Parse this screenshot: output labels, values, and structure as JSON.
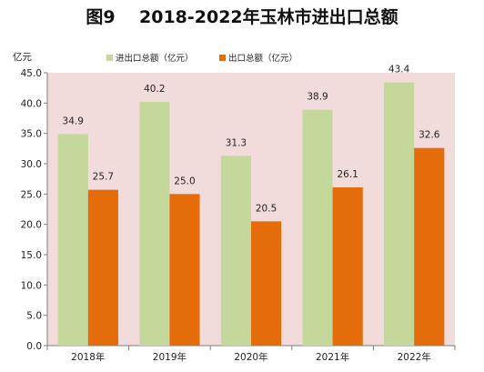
{
  "chart_data": {
    "type": "bar",
    "title": "图9    2018-2022年玉林市进出口总额",
    "ylabel": "亿元",
    "categories": [
      "2018年",
      "2019年",
      "2020年",
      "2021年",
      "2022年"
    ],
    "series": [
      {
        "name": "进出口总额（亿元）",
        "color": "#c4d89b",
        "values": [
          34.9,
          40.2,
          31.3,
          38.9,
          43.4
        ]
      },
      {
        "name": "出口总额（亿元）",
        "color": "#e46c0a",
        "values": [
          25.7,
          25.0,
          20.5,
          26.1,
          32.6
        ]
      }
    ],
    "value_labels": [
      [
        "34.9",
        "40.2",
        "31.3",
        "38.9",
        "43.4"
      ],
      [
        "25.7",
        "25.0",
        "20.5",
        "26.1",
        "32.6"
      ]
    ],
    "ylim": [
      0,
      45
    ],
    "yticks": [
      "0.0",
      "5.0",
      "10.0",
      "15.0",
      "20.0",
      "25.0",
      "30.0",
      "35.0",
      "40.0",
      "45.0"
    ],
    "plot_background": "#f2dcdb",
    "legend_position": "top-center",
    "grid": false
  }
}
